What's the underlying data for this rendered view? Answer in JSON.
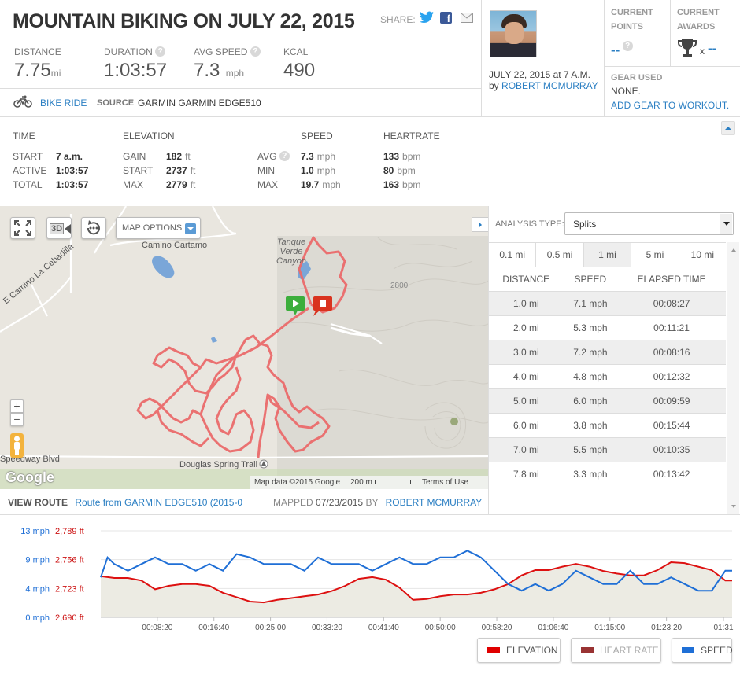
{
  "title": "MOUNTAIN BIKING ON JULY 22, 2015",
  "share_label": "SHARE:",
  "summary": [
    {
      "label": "DISTANCE",
      "value": "7.75",
      "unit": "mi",
      "help": false
    },
    {
      "label": "DURATION",
      "value": "1:03:57",
      "unit": "",
      "help": true
    },
    {
      "label": "AVG SPEED",
      "value": "7.3",
      "unit": "mph",
      "help": true
    },
    {
      "label": "KCAL",
      "value": "490",
      "unit": "",
      "help": false
    }
  ],
  "activity_type": "BIKE RIDE",
  "source_label": "SOURCE",
  "source_value": "GARMIN GARMIN EDGE510",
  "profile": {
    "date": "JULY 22, 2015 at 7 A.M.",
    "by": "by",
    "name": "ROBERT MCMURRAY"
  },
  "points": {
    "label": "CURRENT POINTS",
    "value": "--"
  },
  "awards": {
    "label": "CURRENT AWARDS",
    "x": "x",
    "value": "--"
  },
  "gear": {
    "label": "GEAR USED",
    "value": "NONE.",
    "link": "ADD GEAR TO WORKOUT."
  },
  "time": {
    "title": "TIME",
    "rows": [
      [
        "START",
        "7 a.m.",
        ""
      ],
      [
        "ACTIVE",
        "1:03:57",
        ""
      ],
      [
        "TOTAL",
        "1:03:57",
        ""
      ]
    ]
  },
  "elevation": {
    "title": "ELEVATION",
    "rows": [
      [
        "GAIN",
        "182",
        "ft"
      ],
      [
        "START",
        "2737",
        "ft"
      ],
      [
        "MAX",
        "2779",
        "ft"
      ]
    ]
  },
  "speed": {
    "title": "SPEED",
    "rows": [
      [
        "AVG",
        "7.3",
        "mph"
      ],
      [
        "MIN",
        "1.0",
        "mph"
      ],
      [
        "MAX",
        "19.7",
        "mph"
      ]
    ]
  },
  "heartrate": {
    "title": "HEARTRATE",
    "rows": [
      [
        "",
        "133",
        "bpm"
      ],
      [
        "",
        "80",
        "bpm"
      ],
      [
        "",
        "163",
        "bpm"
      ]
    ]
  },
  "map": {
    "options_label": "MAP OPTIONS",
    "btn_3d": "3D",
    "labels": [
      "Tanque Verde Canyon",
      "Camino Cartamo",
      "E Camino La Cebadilla",
      "2800",
      "Speedway Blvd",
      "Douglas Spring Trail"
    ],
    "attribution": "Map data ©2015 Google",
    "scale": "200 m",
    "terms": "Terms of Use",
    "google": "Google",
    "zoom_in": "+",
    "zoom_out": "−"
  },
  "route": {
    "label": "VIEW ROUTE",
    "link": "Route from GARMIN EDGE510 (2015-0",
    "mapped_label": "MAPPED",
    "mapped_date": "07/23/2015",
    "by": "BY",
    "mapper": "ROBERT MCMURRAY"
  },
  "analysis": {
    "label": "ANALYSIS TYPE:",
    "selected": "Splits"
  },
  "split_tabs": [
    "0.1 mi",
    "0.5 mi",
    "1 mi",
    "5 mi",
    "10 mi"
  ],
  "split_headers": [
    "DISTANCE",
    "SPEED",
    "ELAPSED TIME"
  ],
  "splits": [
    [
      "1.0 mi",
      "7.1 mph",
      "00:08:27"
    ],
    [
      "2.0 mi",
      "5.3 mph",
      "00:11:21"
    ],
    [
      "3.0 mi",
      "7.2 mph",
      "00:08:16"
    ],
    [
      "4.0 mi",
      "4.8 mph",
      "00:12:32"
    ],
    [
      "5.0 mi",
      "6.0 mph",
      "00:09:59"
    ],
    [
      "6.0 mi",
      "3.8 mph",
      "00:15:44"
    ],
    [
      "7.0 mi",
      "5.5 mph",
      "00:10:35"
    ],
    [
      "7.8 mi",
      "3.3 mph",
      "00:13:42"
    ]
  ],
  "legend": [
    {
      "name": "ELEVATION",
      "color": "#e00000",
      "on": true
    },
    {
      "name": "HEART RATE",
      "color": "#993333",
      "on": false
    },
    {
      "name": "SPEED",
      "color": "#1f6fd6",
      "on": true
    }
  ],
  "chart_data": {
    "type": "line",
    "speed_axis": [
      "13 mph",
      "9 mph",
      "4 mph",
      "0 mph"
    ],
    "elev_axis": [
      "2,789 ft",
      "2,756 ft",
      "2,723 ft",
      "2,690 ft"
    ],
    "speed_range": [
      0,
      13
    ],
    "elev_range": [
      2690,
      2789
    ],
    "x_ticks": [
      "00:08:20",
      "00:16:40",
      "00:25:00",
      "00:33:20",
      "00:41:40",
      "00:50:00",
      "00:58:20",
      "01:06:40",
      "01:15:00",
      "01:23:20",
      "01:31"
    ],
    "x_range_min": [
      0,
      93
    ],
    "series": [
      {
        "name": "ELEVATION",
        "unit": "ft",
        "points": [
          [
            0,
            2737
          ],
          [
            2,
            2735
          ],
          [
            4,
            2735
          ],
          [
            6,
            2732
          ],
          [
            8,
            2722
          ],
          [
            10,
            2726
          ],
          [
            12,
            2728
          ],
          [
            14,
            2728
          ],
          [
            16,
            2726
          ],
          [
            18,
            2718
          ],
          [
            20,
            2713
          ],
          [
            22,
            2708
          ],
          [
            24,
            2707
          ],
          [
            26,
            2710
          ],
          [
            28,
            2712
          ],
          [
            30,
            2714
          ],
          [
            32,
            2716
          ],
          [
            34,
            2720
          ],
          [
            36,
            2726
          ],
          [
            38,
            2734
          ],
          [
            40,
            2736
          ],
          [
            42,
            2733
          ],
          [
            44,
            2724
          ],
          [
            46,
            2710
          ],
          [
            48,
            2711
          ],
          [
            50,
            2714
          ],
          [
            52,
            2716
          ],
          [
            54,
            2716
          ],
          [
            56,
            2718
          ],
          [
            58,
            2722
          ],
          [
            60,
            2728
          ],
          [
            62,
            2738
          ],
          [
            64,
            2744
          ],
          [
            66,
            2744
          ],
          [
            68,
            2748
          ],
          [
            70,
            2751
          ],
          [
            72,
            2748
          ],
          [
            74,
            2743
          ],
          [
            76,
            2740
          ],
          [
            78,
            2738
          ],
          [
            80,
            2738
          ],
          [
            82,
            2744
          ],
          [
            84,
            2753
          ],
          [
            86,
            2752
          ],
          [
            88,
            2748
          ],
          [
            90,
            2744
          ],
          [
            92,
            2732
          ],
          [
            93,
            2732
          ]
        ]
      },
      {
        "name": "SPEED",
        "unit": "mph",
        "points": [
          [
            0,
            6
          ],
          [
            1,
            9
          ],
          [
            2,
            8
          ],
          [
            4,
            7
          ],
          [
            6,
            8
          ],
          [
            8,
            9
          ],
          [
            10,
            8
          ],
          [
            12,
            8
          ],
          [
            14,
            7
          ],
          [
            16,
            8
          ],
          [
            18,
            7
          ],
          [
            20,
            9.5
          ],
          [
            22,
            9
          ],
          [
            24,
            8
          ],
          [
            26,
            8
          ],
          [
            28,
            8
          ],
          [
            30,
            7
          ],
          [
            32,
            9
          ],
          [
            34,
            8
          ],
          [
            36,
            8
          ],
          [
            38,
            8
          ],
          [
            40,
            7
          ],
          [
            42,
            8
          ],
          [
            44,
            9
          ],
          [
            46,
            8
          ],
          [
            48,
            8
          ],
          [
            50,
            9
          ],
          [
            52,
            9
          ],
          [
            54,
            10
          ],
          [
            56,
            9
          ],
          [
            58,
            7
          ],
          [
            60,
            5
          ],
          [
            62,
            4
          ],
          [
            64,
            5
          ],
          [
            66,
            4
          ],
          [
            68,
            5
          ],
          [
            70,
            7
          ],
          [
            72,
            6
          ],
          [
            74,
            5
          ],
          [
            76,
            5
          ],
          [
            78,
            7
          ],
          [
            80,
            5
          ],
          [
            82,
            5
          ],
          [
            84,
            6
          ],
          [
            86,
            5
          ],
          [
            88,
            4
          ],
          [
            90,
            4
          ],
          [
            92,
            7
          ],
          [
            93,
            7
          ]
        ]
      }
    ]
  }
}
